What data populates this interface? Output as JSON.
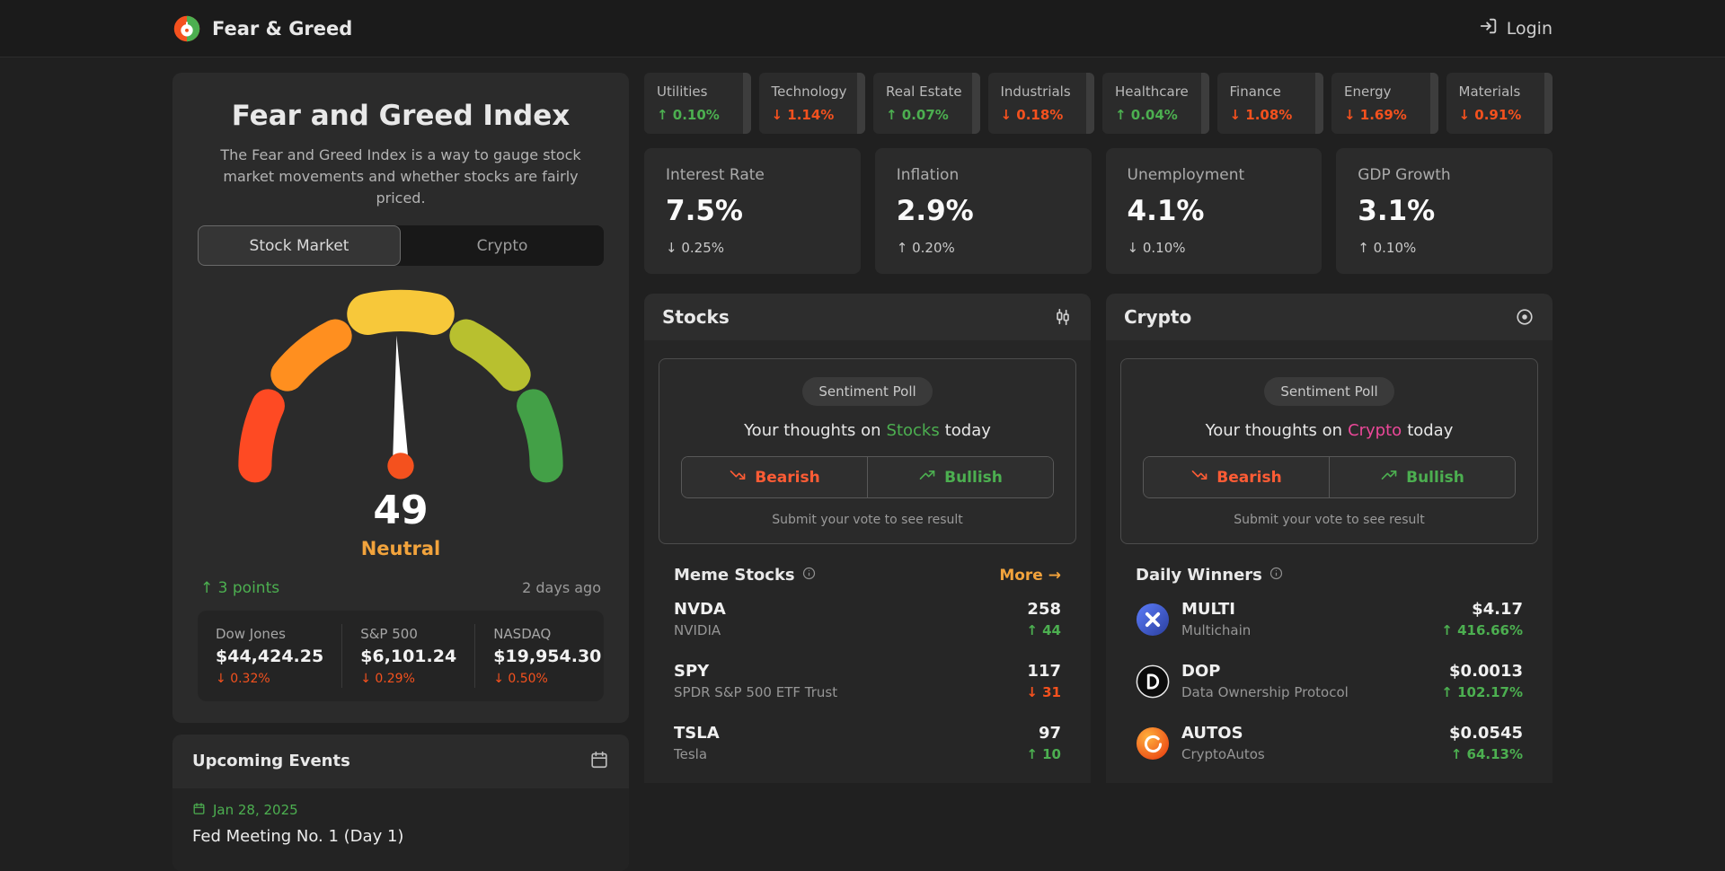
{
  "navbar": {
    "brand": "Fear & Greed",
    "login_label": "Login"
  },
  "colors": {
    "green": "#4caf50",
    "red": "#f4511e",
    "orange": "#f2a33c",
    "pink": "#ec4899"
  },
  "icons": {
    "brand": "gauge-logo-icon",
    "login": "login-arrow-icon",
    "stocks_header": "candlestick-icon",
    "crypto_header": "target-icon",
    "events_header": "calendar-icon",
    "event_date": "calendar-icon",
    "list_info": "info-icon",
    "bearish": "trending-down-icon",
    "bullish": "trending-up-icon"
  },
  "fgi": {
    "title": "Fear and Greed Index",
    "description": "The Fear and Greed Index is a way to gauge stock market movements and whether stocks are fairly priced.",
    "tabs": [
      {
        "label": "Stock Market",
        "active": true
      },
      {
        "label": "Crypto",
        "active": false
      }
    ],
    "gauge": {
      "value": "49",
      "label": "Neutral",
      "change": "3 points",
      "change_direction": "up",
      "updated": "2 days ago",
      "segment_colors": [
        "#fe4a23",
        "#ff8f1f",
        "#f7c83a",
        "#b8c02f",
        "#43a047"
      ]
    },
    "indices": [
      {
        "name": "Dow Jones",
        "value": "$44,424.25",
        "change": "0.32%",
        "direction": "down"
      },
      {
        "name": "S&P 500",
        "value": "$6,101.24",
        "change": "0.29%",
        "direction": "down"
      },
      {
        "name": "NASDAQ",
        "value": "$19,954.30",
        "change": "0.50%",
        "direction": "down"
      }
    ]
  },
  "events": {
    "title": "Upcoming Events",
    "items": [
      {
        "date": "Jan 28, 2025",
        "title": "Fed Meeting No. 1 (Day 1)"
      }
    ]
  },
  "sectors": [
    {
      "name": "Utilities",
      "change": "0.10%",
      "direction": "up"
    },
    {
      "name": "Technology",
      "change": "1.14%",
      "direction": "down"
    },
    {
      "name": "Real Estate",
      "change": "0.07%",
      "direction": "up"
    },
    {
      "name": "Industrials",
      "change": "0.18%",
      "direction": "down"
    },
    {
      "name": "Healthcare",
      "change": "0.04%",
      "direction": "up"
    },
    {
      "name": "Finance",
      "change": "1.08%",
      "direction": "down"
    },
    {
      "name": "Energy",
      "change": "1.69%",
      "direction": "down"
    },
    {
      "name": "Materials",
      "change": "0.91%",
      "direction": "down"
    }
  ],
  "macro": [
    {
      "name": "Interest Rate",
      "value": "7.5%",
      "change": "0.25%",
      "direction": "down"
    },
    {
      "name": "Inflation",
      "value": "2.9%",
      "change": "0.20%",
      "direction": "up"
    },
    {
      "name": "Unemployment",
      "value": "4.1%",
      "change": "0.10%",
      "direction": "down"
    },
    {
      "name": "GDP Growth",
      "value": "3.1%",
      "change": "0.10%",
      "direction": "up"
    }
  ],
  "stocks": {
    "title": "Stocks",
    "poll": {
      "badge": "Sentiment Poll",
      "prompt_prefix": "Your thoughts on",
      "subject": "Stocks",
      "prompt_suffix": "today",
      "bearish": "Bearish",
      "bullish": "Bullish",
      "hint": "Submit your vote to see result"
    },
    "list_title": "Meme Stocks",
    "more_label": "More",
    "items": [
      {
        "symbol": "NVDA",
        "name": "NVIDIA",
        "value": "258",
        "change": "44",
        "direction": "up"
      },
      {
        "symbol": "SPY",
        "name": "SPDR S&P 500 ETF Trust",
        "value": "117",
        "change": "31",
        "direction": "down"
      },
      {
        "symbol": "TSLA",
        "name": "Tesla",
        "value": "97",
        "change": "10",
        "direction": "up"
      }
    ]
  },
  "crypto": {
    "title": "Crypto",
    "poll": {
      "badge": "Sentiment Poll",
      "prompt_prefix": "Your thoughts on",
      "subject": "Crypto",
      "prompt_suffix": "today",
      "bearish": "Bearish",
      "bullish": "Bullish",
      "hint": "Submit your vote to see result"
    },
    "list_title": "Daily Winners",
    "items": [
      {
        "symbol": "MULTI",
        "name": "Multichain",
        "value": "$4.17",
        "change": "416.66%",
        "direction": "up",
        "icon": "multichain-logo"
      },
      {
        "symbol": "DOP",
        "name": "Data Ownership Protocol",
        "value": "$0.0013",
        "change": "102.17%",
        "direction": "up",
        "icon": "dop-logo"
      },
      {
        "symbol": "AUTOS",
        "name": "CryptoAutos",
        "value": "$0.0545",
        "change": "64.13%",
        "direction": "up",
        "icon": "cryptoautos-logo"
      }
    ]
  }
}
